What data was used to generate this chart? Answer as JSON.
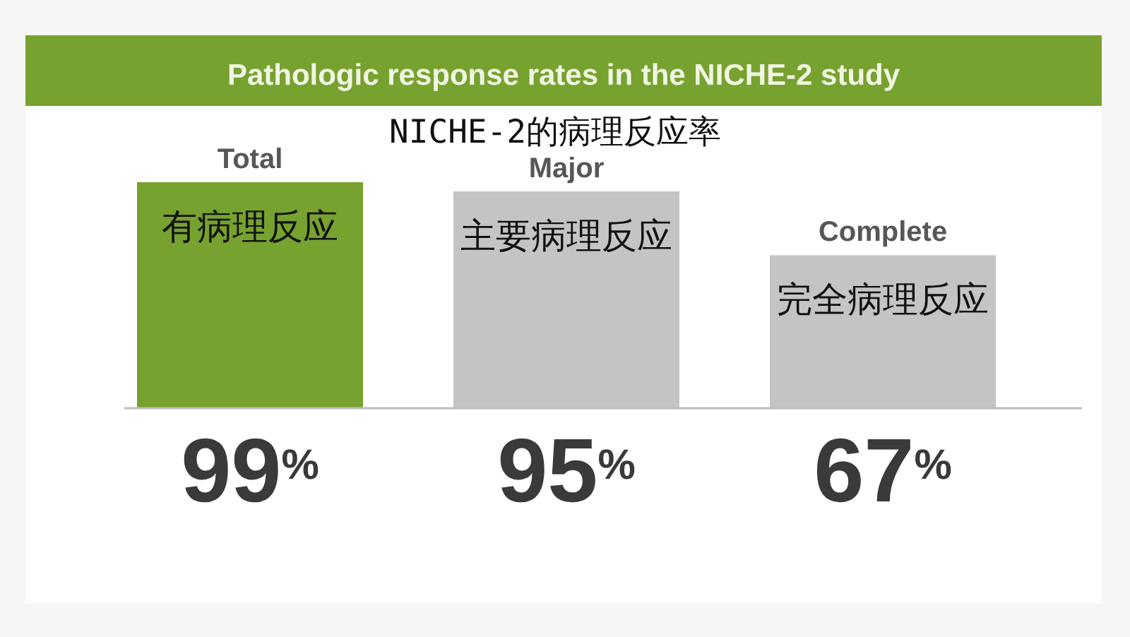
{
  "chart_data": {
    "type": "bar",
    "title": "Pathologic response rates in the NICHE-2 study",
    "subtitle": "NICHE-2的病理反应率",
    "categories": [
      "Total",
      "Major",
      "Complete"
    ],
    "values": [
      99,
      95,
      67
    ],
    "colors": [
      "#77a22f",
      "#c4c4c4",
      "#c4c4c4"
    ],
    "value_labels": [
      "99$^{%}$",
      "95$^{%}$",
      "67$^{%}$"
    ],
    "annotations": [
      "有病理反应",
      "主要病理反应",
      "完全病理反应"
    ]
  }
}
